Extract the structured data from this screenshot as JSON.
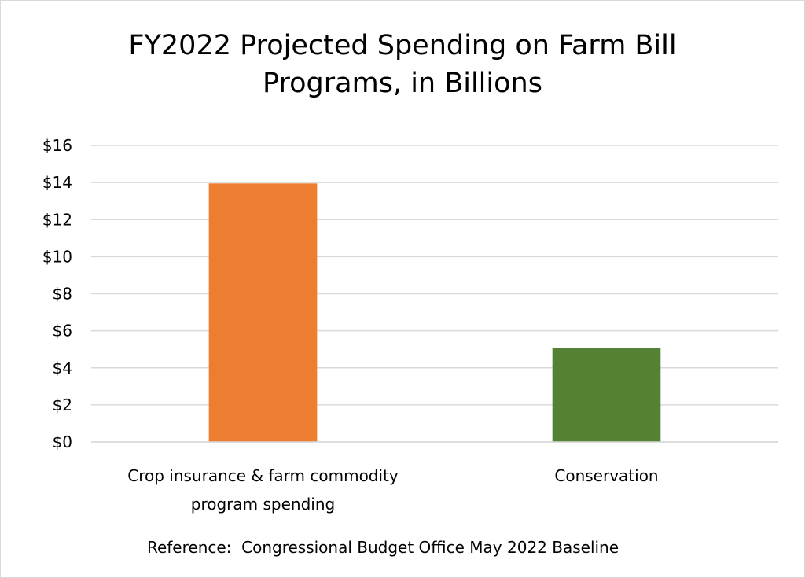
{
  "chart_data": {
    "type": "bar",
    "title": "FY2022 Projected Spending on Farm Bill Programs, in Billions",
    "title_lines": [
      "FY2022 Projected Spending on Farm Bill",
      "Programs, in Billions"
    ],
    "categories": [
      "Crop insurance & farm commodity program spending",
      "Conservation"
    ],
    "category_lines": [
      [
        "Crop insurance & farm commodity",
        "program spending"
      ],
      [
        "Conservation"
      ]
    ],
    "values": [
      13.95,
      5.05
    ],
    "bar_colors": [
      "#ED7D31",
      "#548235"
    ],
    "ylim": [
      0,
      16
    ],
    "yticks": [
      0,
      2,
      4,
      6,
      8,
      10,
      12,
      14,
      16
    ],
    "ytick_labels": [
      "$0",
      "$2",
      "$4",
      "$6",
      "$8",
      "$10",
      "$12",
      "$14",
      "$16"
    ],
    "xlabel": "",
    "ylabel": "",
    "grid": true,
    "legend": false
  },
  "footer": {
    "reference": "Reference:  Congressional Budget Office May 2022 Baseline"
  },
  "colors": {
    "gridline": "#d9d9d9",
    "axis_line": "#d9d9d9",
    "border": "#d9d9d9"
  }
}
